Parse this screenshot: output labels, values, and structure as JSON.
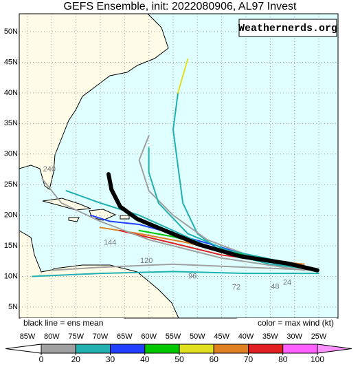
{
  "map": {
    "title": "GEFS Ensemble, init: 2022080906, AL97 Invest",
    "credit": "Weathernerds.org",
    "note_left": "black line = ens mean",
    "note_right": "color = max wind (kt)",
    "lonticks": [
      {
        "value": -85,
        "label": "85W"
      },
      {
        "value": -80,
        "label": "80W"
      },
      {
        "value": -75,
        "label": "75W"
      },
      {
        "value": -70,
        "label": "70W"
      },
      {
        "value": -65,
        "label": "65W"
      },
      {
        "value": -60,
        "label": "60W"
      },
      {
        "value": -55,
        "label": "55W"
      },
      {
        "value": -50,
        "label": "50W"
      },
      {
        "value": -45,
        "label": "45W"
      },
      {
        "value": -40,
        "label": "40W"
      },
      {
        "value": -35,
        "label": "35W"
      },
      {
        "value": -30,
        "label": "30W"
      },
      {
        "value": -25,
        "label": "25W"
      }
    ],
    "latticks": [
      {
        "value": 5,
        "label": "5N"
      },
      {
        "value": 10,
        "label": "10N"
      },
      {
        "value": 15,
        "label": "15N"
      },
      {
        "value": 20,
        "label": "20N"
      },
      {
        "value": 25,
        "label": "25N"
      },
      {
        "value": 30,
        "label": "30N"
      },
      {
        "value": 35,
        "label": "35N"
      },
      {
        "value": 40,
        "label": "40N"
      },
      {
        "value": 45,
        "label": "45N"
      },
      {
        "value": 50,
        "label": "50N"
      }
    ],
    "mean_track": {
      "color": "#000000",
      "lon": [
        -25.3,
        -31.3,
        -41.2,
        -49.6,
        -56.7,
        -62.4,
        -65.9,
        -67.7,
        -68.3
      ],
      "lat": [
        11,
        12.1,
        13.3,
        15.2,
        17.5,
        19.4,
        21.4,
        24.2,
        26.7
      ]
    },
    "members": [
      {
        "color": "#20b0b0",
        "lon": [
          -25,
          -35,
          -45,
          -50,
          -53,
          -54,
          -55,
          -54
        ],
        "lat": [
          11,
          12,
          14,
          17,
          22,
          28,
          34,
          40
        ]
      },
      {
        "color": "#e0e020",
        "lon": [
          -54,
          -52
        ],
        "lat": [
          40,
          45.5
        ]
      },
      {
        "color": "#2040ff",
        "lon": [
          -26,
          -36,
          -46,
          -55,
          -62,
          -68,
          -72
        ],
        "lat": [
          11,
          12.5,
          15,
          17,
          18.5,
          19,
          20
        ]
      },
      {
        "color": "#00c800",
        "lon": [
          -27,
          -38,
          -48,
          -55,
          -62
        ],
        "lat": [
          11.5,
          13,
          15,
          16.5,
          17.5
        ]
      },
      {
        "color": "#a0a0a0",
        "lon": [
          -25,
          -40,
          -55,
          -70,
          -80
        ],
        "lat": [
          11,
          11.5,
          12,
          11.5,
          11
        ]
      },
      {
        "color": "#20b0b0",
        "lon": [
          -25,
          -40,
          -55,
          -70,
          -84
        ],
        "lat": [
          10.5,
          10.5,
          10.8,
          10.5,
          10
        ]
      },
      {
        "color": "#e08020",
        "lon": [
          -28,
          -40,
          -52,
          -62,
          -70
        ],
        "lat": [
          12,
          13,
          15.5,
          17,
          18
        ]
      },
      {
        "color": "#e02020",
        "lon": [
          -30,
          -45,
          -58,
          -66
        ],
        "lat": [
          12,
          13.5,
          16,
          17.5
        ]
      },
      {
        "color": "#a0a0a0",
        "lon": [
          -25,
          -38,
          -48,
          -55,
          -60,
          -62,
          -60
        ],
        "lat": [
          11,
          13,
          16,
          20,
          24,
          29,
          33
        ]
      },
      {
        "color": "#20b0b0",
        "lon": [
          -26,
          -40,
          -52,
          -58,
          -60,
          -60
        ],
        "lat": [
          11,
          13,
          17,
          22,
          27,
          31
        ]
      },
      {
        "color": "#a0a0a0",
        "lon": [
          -28,
          -45,
          -60,
          -70,
          -78,
          -82
        ],
        "lat": [
          11,
          13,
          16,
          19,
          22,
          26
        ]
      },
      {
        "color": "#20b0b0",
        "lon": [
          -30,
          -48,
          -62,
          -70,
          -77
        ],
        "lat": [
          12,
          15,
          20,
          22,
          24
        ]
      }
    ],
    "hour_labels": [
      {
        "text": 240,
        "lon": -80.5,
        "lat": 27.5
      },
      {
        "text": 144,
        "lon": -68,
        "lat": 15.5
      },
      {
        "text": 120,
        "lon": -60.5,
        "lat": 12.5
      },
      {
        "text": 96,
        "lon": -51,
        "lat": 10
      },
      {
        "text": 72,
        "lon": -42,
        "lat": 8.2
      },
      {
        "text": 48,
        "lon": -34,
        "lat": 8.3
      },
      {
        "text": 24,
        "lon": -31.5,
        "lat": 9
      }
    ],
    "colorbar": {
      "levels": [
        0,
        20,
        30,
        40,
        50,
        60,
        70,
        80,
        100
      ],
      "colors": [
        "#a0a0a0",
        "#20b0b0",
        "#2040ff",
        "#00c800",
        "#e0e020",
        "#e08020",
        "#e02020",
        "#ff60ff"
      ],
      "under": "#ffffff",
      "over": "#ff90ff"
    }
  }
}
